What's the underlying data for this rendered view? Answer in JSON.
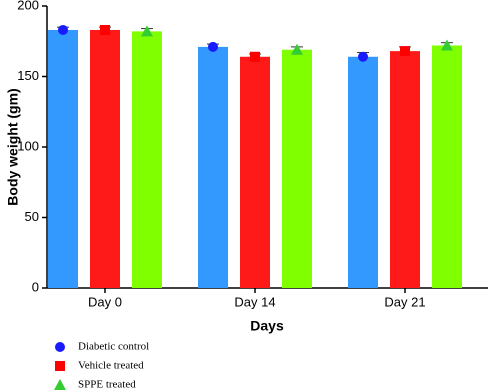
{
  "chart_data": {
    "type": "bar",
    "x_label": "Days",
    "y_label": "Body weight (gm)",
    "categories": [
      "Day 0",
      "Day 14",
      "Day 21"
    ],
    "series": [
      {
        "name": "Diabetic control",
        "color": "#3399ff",
        "marker": "circle",
        "marker_color": "#1a1aff",
        "values": [
          183,
          171,
          164
        ],
        "errors": [
          2,
          2,
          3
        ]
      },
      {
        "name": "Vehicle treated",
        "color": "#ff1a1a",
        "marker": "square",
        "marker_color": "#ff0000",
        "values": [
          183,
          164,
          168
        ],
        "errors": [
          2,
          2,
          3
        ]
      },
      {
        "name": "SPPE treated",
        "color": "#80ff00",
        "marker": "triangle",
        "marker_color": "#33cc33",
        "values": [
          182,
          169,
          172
        ],
        "errors": [
          2,
          2,
          2
        ]
      }
    ],
    "ylim": [
      0,
      200
    ],
    "yticks": [
      0,
      50,
      100,
      150,
      200
    ]
  }
}
